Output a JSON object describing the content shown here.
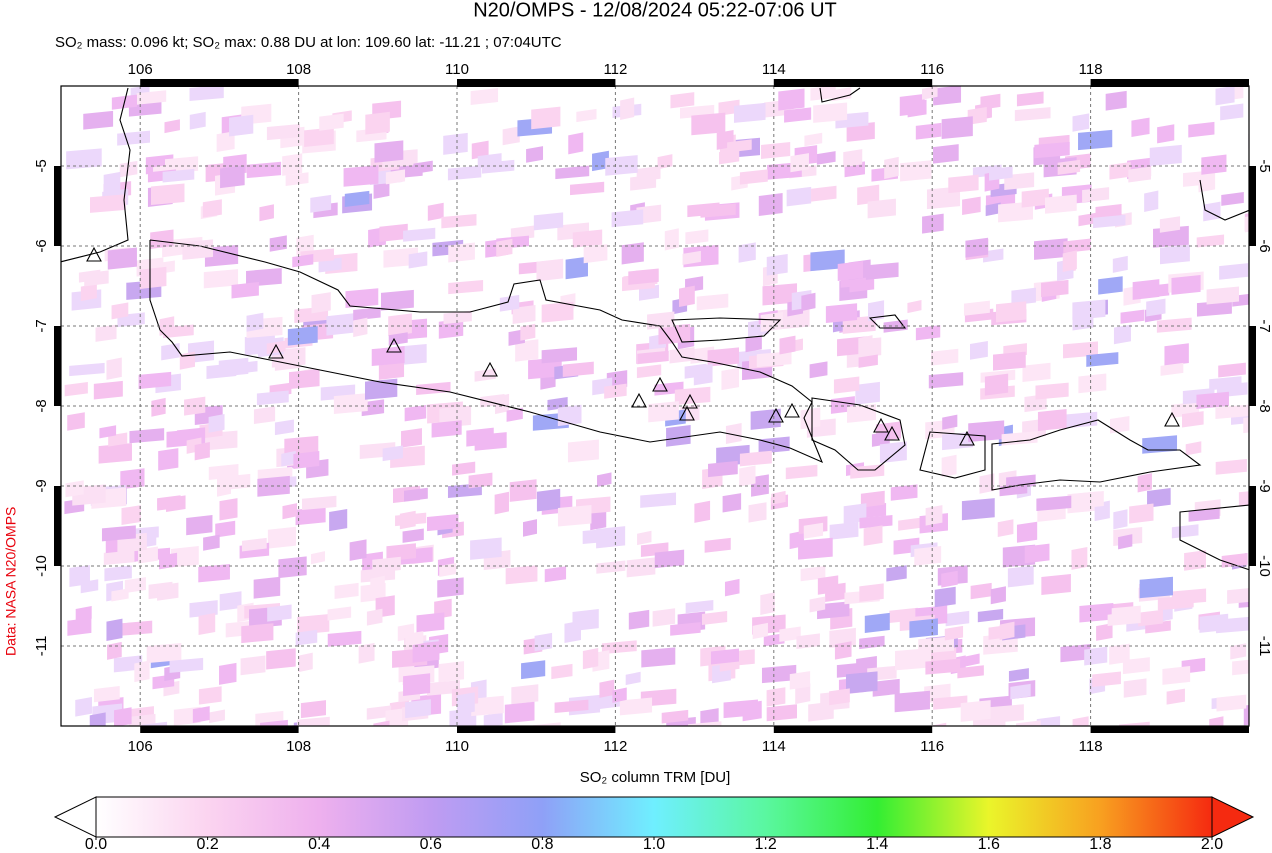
{
  "title": "N20/OMPS - 12/08/2024 05:22-07:06 UT",
  "subtitle": "SO₂ mass: 0.096 kt; SO₂ max: 0.88 DU at lon: 109.60 lat: -11.21 ; 07:04UTC",
  "credit": "Data: NASA N20/OMPS",
  "map": {
    "xlim": [
      105,
      120
    ],
    "ylim": [
      -12,
      -4
    ],
    "xticks": [
      106,
      108,
      110,
      112,
      114,
      116,
      118
    ],
    "yticks": [
      -5,
      -6,
      -7,
      -8,
      -9,
      -10,
      -11
    ]
  },
  "colorbar": {
    "label": "SO₂ column TRM [DU]",
    "lim": [
      0,
      2
    ],
    "ticks": [
      {
        "value": 0,
        "label": "0.0"
      },
      {
        "value": 0.2,
        "label": "0.2"
      },
      {
        "value": 0.4,
        "label": "0.4"
      },
      {
        "value": 0.6,
        "label": "0.6"
      },
      {
        "value": 0.8,
        "label": "0.8"
      },
      {
        "value": 1,
        "label": "1.0"
      },
      {
        "value": 1.2,
        "label": "1.2"
      },
      {
        "value": 1.4,
        "label": "1.4"
      },
      {
        "value": 1.6,
        "label": "1.6"
      },
      {
        "value": 1.8,
        "label": "1.8"
      },
      {
        "value": 2,
        "label": "2.0"
      }
    ]
  }
}
